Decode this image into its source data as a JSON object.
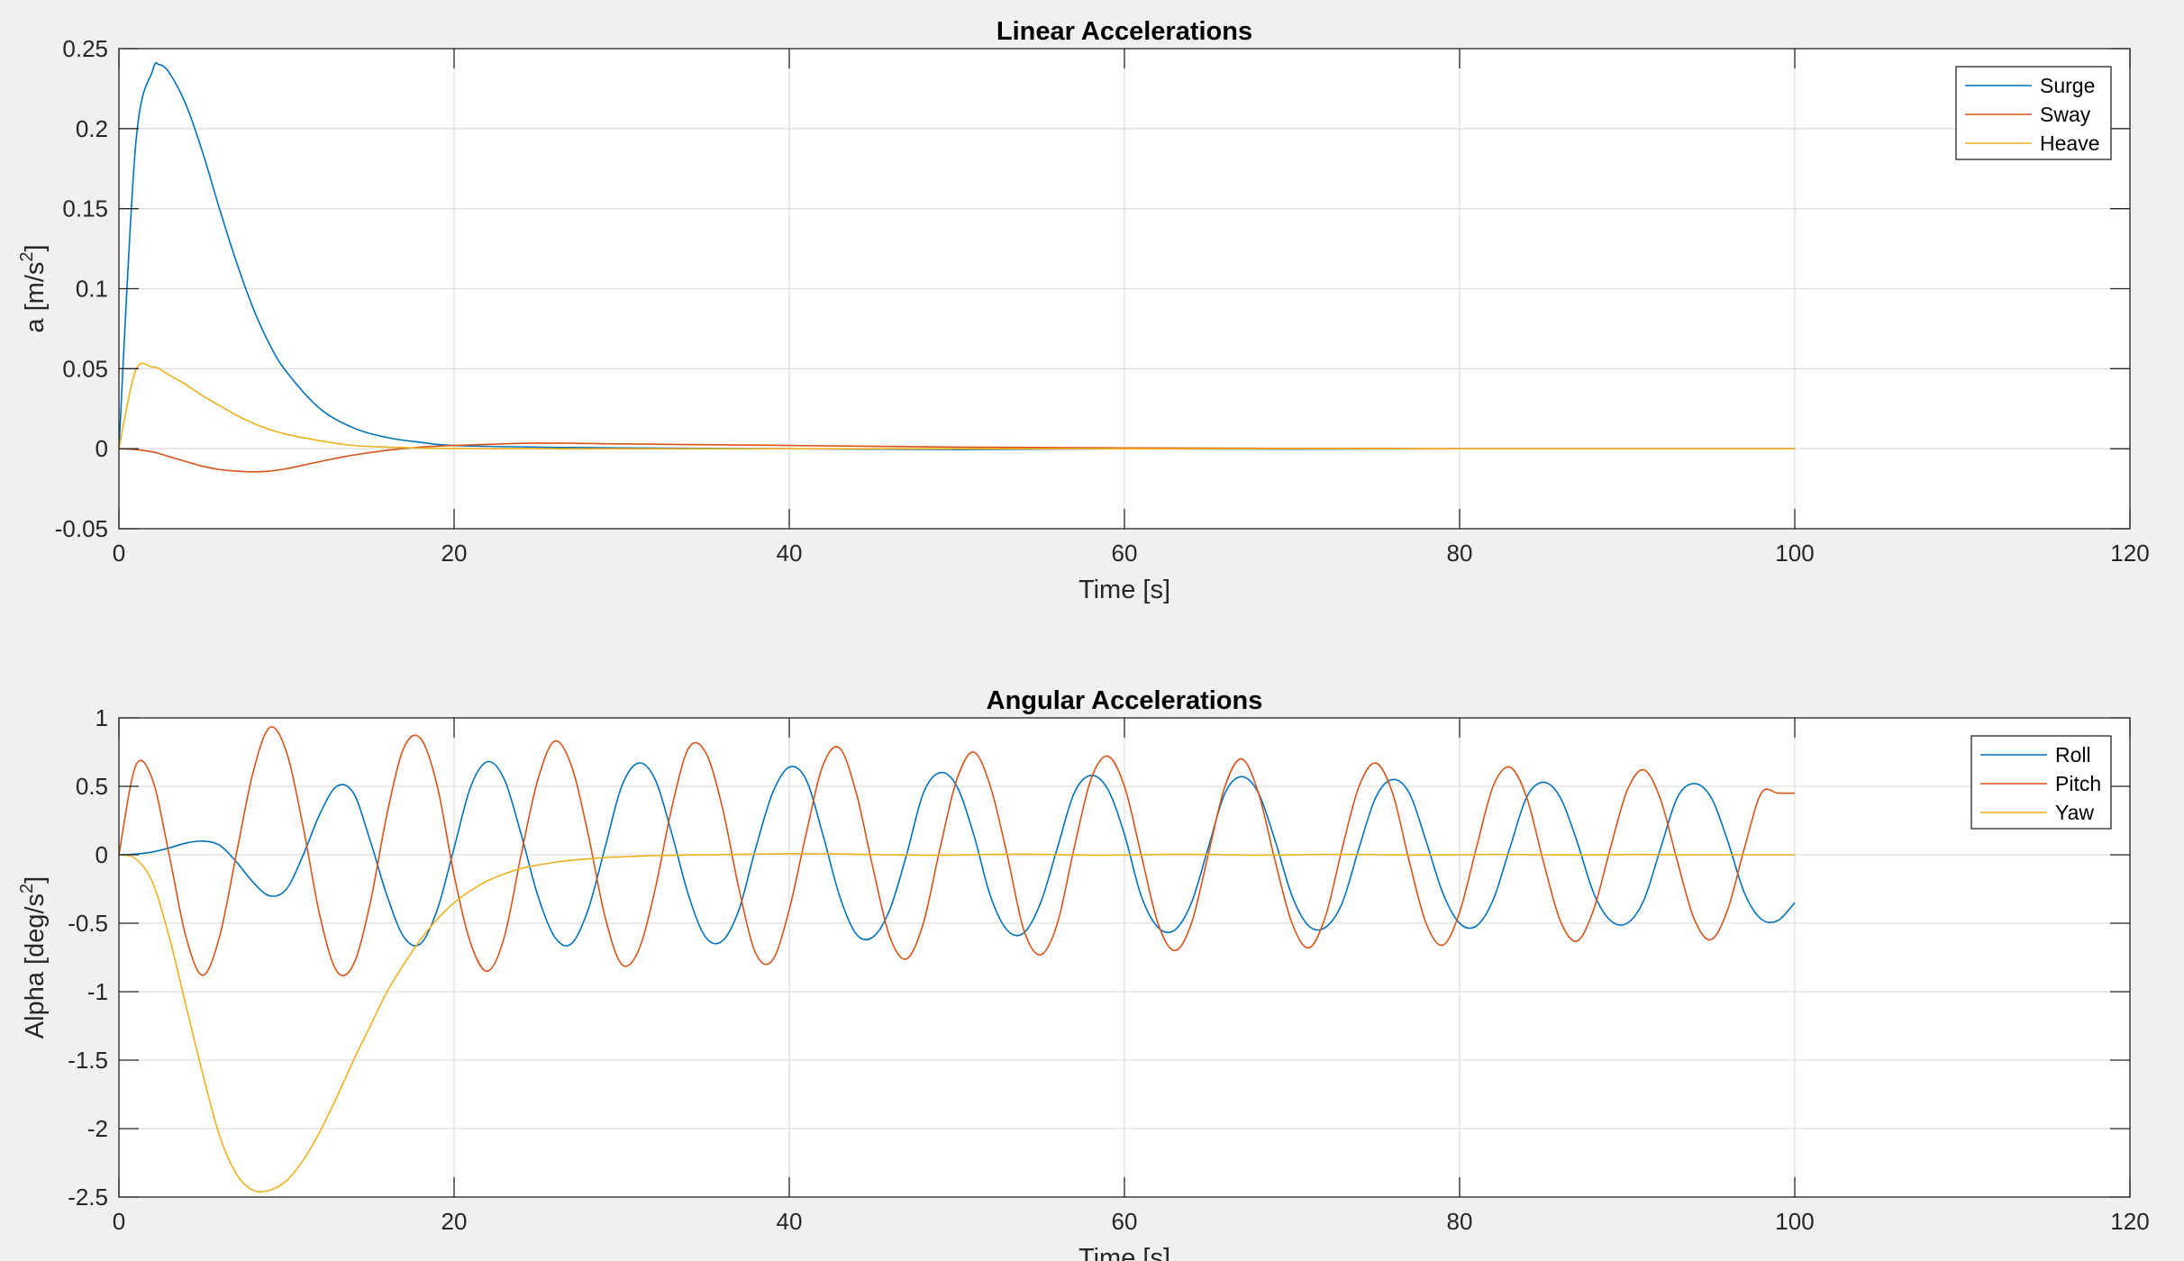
{
  "chart_data": [
    {
      "id": "linear",
      "type": "line",
      "title": "Linear Accelerations",
      "xlabel": "Time [s]",
      "ylabel": "a [m/s",
      "ylabel_sup": "2",
      "ylabel_end": "]",
      "xlim": [
        0,
        120
      ],
      "ylim": [
        -0.05,
        0.25
      ],
      "xticks": [
        0,
        20,
        40,
        60,
        80,
        100,
        120
      ],
      "xtick_labels": [
        "0",
        "20",
        "40",
        "60",
        "80",
        "100",
        "120"
      ],
      "yticks": [
        -0.05,
        0,
        0.05,
        0.1,
        0.15,
        0.2,
        0.25
      ],
      "ytick_labels": [
        "-0.05",
        "0",
        "0.05",
        "0.1",
        "0.15",
        "0.2",
        "0.25"
      ],
      "grid": true,
      "legend_position": "top-right",
      "x": [
        0,
        1,
        2,
        2.4,
        3,
        4,
        5,
        6,
        7,
        8,
        9,
        10,
        12,
        14,
        16,
        18,
        20,
        25,
        30,
        40,
        50,
        60,
        70,
        80,
        90,
        100
      ],
      "series": [
        {
          "name": "Surge",
          "color": "#0072BD",
          "values": [
            0,
            0.19,
            0.236,
            0.24,
            0.235,
            0.215,
            0.185,
            0.15,
            0.117,
            0.088,
            0.065,
            0.048,
            0.025,
            0.013,
            0.007,
            0.004,
            0.002,
            0.001,
            0.0005,
            0,
            -0.0005,
            0,
            -0.0003,
            0,
            0,
            0
          ]
        },
        {
          "name": "Sway",
          "color": "#D95319",
          "values": [
            0,
            -0.0005,
            -0.002,
            -0.003,
            -0.005,
            -0.008,
            -0.011,
            -0.013,
            -0.014,
            -0.0145,
            -0.014,
            -0.0125,
            -0.008,
            -0.004,
            -0.001,
            0.001,
            0.002,
            0.0035,
            0.003,
            0.002,
            0.001,
            0.0005,
            0.0002,
            0,
            0,
            0
          ]
        },
        {
          "name": "Heave",
          "color": "#EDB120",
          "values": [
            0,
            0.049,
            0.051,
            0.05,
            0.046,
            0.04,
            0.033,
            0.027,
            0.021,
            0.016,
            0.012,
            0.009,
            0.005,
            0.002,
            0.001,
            0.0004,
            0.0002,
            0,
            0,
            0,
            0,
            0,
            0,
            0,
            0,
            0
          ]
        }
      ]
    },
    {
      "id": "angular",
      "type": "line",
      "title": "Angular Accelerations",
      "xlabel": "Time [s]",
      "ylabel": "Alpha [deg/s",
      "ylabel_sup": "2",
      "ylabel_end": "]",
      "xlim": [
        0,
        120
      ],
      "ylim": [
        -2.5,
        1
      ],
      "xticks": [
        0,
        20,
        40,
        60,
        80,
        100,
        120
      ],
      "xtick_labels": [
        "0",
        "20",
        "40",
        "60",
        "80",
        "100",
        "120"
      ],
      "yticks": [
        -2.5,
        -2,
        -1.5,
        -1,
        -0.5,
        0,
        0.5,
        1
      ],
      "ytick_labels": [
        "-2.5",
        "-2",
        "-1.5",
        "-1",
        "-0.5",
        "0",
        "0.5",
        "1"
      ],
      "grid": true,
      "legend_position": "top-right",
      "x": [
        0,
        1,
        2,
        3,
        4,
        5,
        6,
        7,
        8,
        9,
        10,
        11,
        12,
        13,
        14,
        15,
        16,
        17,
        18,
        19,
        20,
        21,
        22,
        23,
        24,
        25,
        26,
        27,
        28,
        29,
        30,
        31,
        32,
        33,
        34,
        35,
        36,
        37,
        38,
        39,
        40,
        41,
        42,
        43,
        44,
        45,
        46,
        47,
        48,
        49,
        50,
        51,
        52,
        53,
        54,
        55,
        56,
        57,
        58,
        59,
        60,
        61,
        62,
        63,
        64,
        65,
        66,
        67,
        68,
        69,
        70,
        71,
        72,
        73,
        74,
        75,
        76,
        77,
        78,
        79,
        80,
        81,
        82,
        83,
        84,
        85,
        86,
        87,
        88,
        89,
        90,
        91,
        92,
        93,
        94,
        95,
        96,
        97,
        98,
        99,
        100
      ],
      "series": [
        {
          "name": "Roll",
          "color": "#0072BD",
          "values": [
            0,
            0.005,
            0.02,
            0.05,
            0.085,
            0.1,
            0.07,
            -0.05,
            -0.2,
            -0.3,
            -0.25,
            0.0,
            0.3,
            0.5,
            0.45,
            0.1,
            -0.3,
            -0.6,
            -0.65,
            -0.4,
            0.05,
            0.5,
            0.68,
            0.55,
            0.15,
            -0.3,
            -0.6,
            -0.65,
            -0.4,
            0.05,
            0.5,
            0.67,
            0.55,
            0.15,
            -0.3,
            -0.6,
            -0.63,
            -0.4,
            0.05,
            0.45,
            0.64,
            0.55,
            0.15,
            -0.3,
            -0.58,
            -0.6,
            -0.4,
            0.0,
            0.45,
            0.6,
            0.5,
            0.15,
            -0.3,
            -0.55,
            -0.57,
            -0.35,
            0.05,
            0.45,
            0.58,
            0.48,
            0.15,
            -0.3,
            -0.53,
            -0.55,
            -0.35,
            0.05,
            0.45,
            0.57,
            0.45,
            0.1,
            -0.3,
            -0.52,
            -0.53,
            -0.35,
            0.05,
            0.42,
            0.55,
            0.45,
            0.1,
            -0.28,
            -0.5,
            -0.52,
            -0.33,
            0.05,
            0.42,
            0.53,
            0.42,
            0.1,
            -0.28,
            -0.48,
            -0.5,
            -0.33,
            0.05,
            0.42,
            0.52,
            0.42,
            0.1,
            -0.28,
            -0.47,
            -0.48,
            -0.35
          ]
        },
        {
          "name": "Pitch",
          "color": "#D95319",
          "values": [
            0,
            0.65,
            0.55,
            0.0,
            -0.6,
            -0.88,
            -0.6,
            0.0,
            0.6,
            0.93,
            0.75,
            0.2,
            -0.45,
            -0.85,
            -0.8,
            -0.35,
            0.3,
            0.78,
            0.85,
            0.5,
            -0.15,
            -0.65,
            -0.85,
            -0.6,
            0.0,
            0.55,
            0.83,
            0.65,
            0.15,
            -0.45,
            -0.8,
            -0.7,
            -0.25,
            0.35,
            0.78,
            0.75,
            0.35,
            -0.25,
            -0.72,
            -0.77,
            -0.4,
            0.15,
            0.65,
            0.78,
            0.45,
            -0.1,
            -0.6,
            -0.76,
            -0.5,
            0.05,
            0.55,
            0.75,
            0.5,
            0.0,
            -0.55,
            -0.73,
            -0.5,
            0.05,
            0.55,
            0.72,
            0.5,
            0.0,
            -0.5,
            -0.7,
            -0.5,
            0.0,
            0.5,
            0.7,
            0.45,
            -0.05,
            -0.5,
            -0.68,
            -0.45,
            0.05,
            0.5,
            0.67,
            0.45,
            -0.05,
            -0.5,
            -0.66,
            -0.42,
            0.05,
            0.5,
            0.64,
            0.42,
            -0.05,
            -0.48,
            -0.63,
            -0.4,
            0.05,
            0.47,
            0.62,
            0.4,
            -0.05,
            -0.47,
            -0.62,
            -0.4,
            0.05,
            0.45,
            0.45,
            0.45
          ]
        },
        {
          "name": "Yaw",
          "color": "#EDB120",
          "values": [
            0,
            -0.03,
            -0.2,
            -0.6,
            -1.1,
            -1.6,
            -2.05,
            -2.33,
            -2.45,
            -2.45,
            -2.38,
            -2.23,
            -2.02,
            -1.77,
            -1.5,
            -1.25,
            -1.0,
            -0.8,
            -0.62,
            -0.47,
            -0.35,
            -0.26,
            -0.19,
            -0.14,
            -0.1,
            -0.075,
            -0.055,
            -0.04,
            -0.03,
            -0.02,
            -0.015,
            -0.01,
            -0.006,
            -0.004,
            -0.002,
            0,
            0.001,
            0.003,
            0.005,
            0.007,
            0.008,
            0.008,
            0.007,
            0.006,
            0.004,
            0.002,
            0,
            -0.002,
            -0.003,
            -0.003,
            -0.002,
            0,
            0.002,
            0.004,
            0.004,
            0.003,
            0.001,
            -0.001,
            -0.003,
            -0.003,
            -0.002,
            0,
            0.002,
            0.003,
            0.003,
            0.002,
            0,
            -0.002,
            -0.003,
            -0.002,
            -0.001,
            0.001,
            0.002,
            0.003,
            0.002,
            0.001,
            -0.001,
            -0.002,
            -0.002,
            -0.001,
            0,
            0.001,
            0.002,
            0.002,
            0.001,
            0,
            -0.001,
            -0.002,
            -0.001,
            0,
            0.001,
            0.001,
            0.001,
            0,
            0,
            0,
            0,
            0,
            0,
            0,
            0
          ]
        }
      ]
    }
  ]
}
